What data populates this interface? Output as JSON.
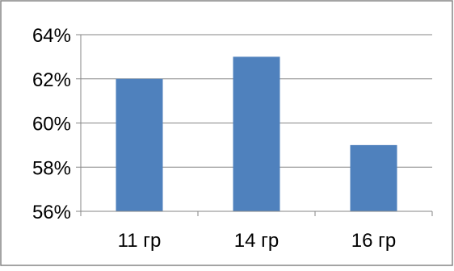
{
  "chart_data": {
    "type": "bar",
    "title": "",
    "xlabel": "",
    "ylabel": "",
    "categories": [
      "11 гр",
      "14 гр",
      "16 гр"
    ],
    "series": [
      {
        "values": [
          62,
          63,
          59
        ],
        "color": "#4F81BD"
      }
    ],
    "ylim": [
      56,
      64
    ],
    "yticks": [
      56,
      58,
      60,
      62,
      64
    ],
    "ytick_labels": [
      "56%",
      "58%",
      "60%",
      "62%",
      "64%"
    ],
    "value_format": "percent",
    "grid": true,
    "legend": "none"
  },
  "colors": {
    "bar": "#4F81BD",
    "grid": "#868686",
    "axis": "#868686",
    "frame": "#868686"
  }
}
